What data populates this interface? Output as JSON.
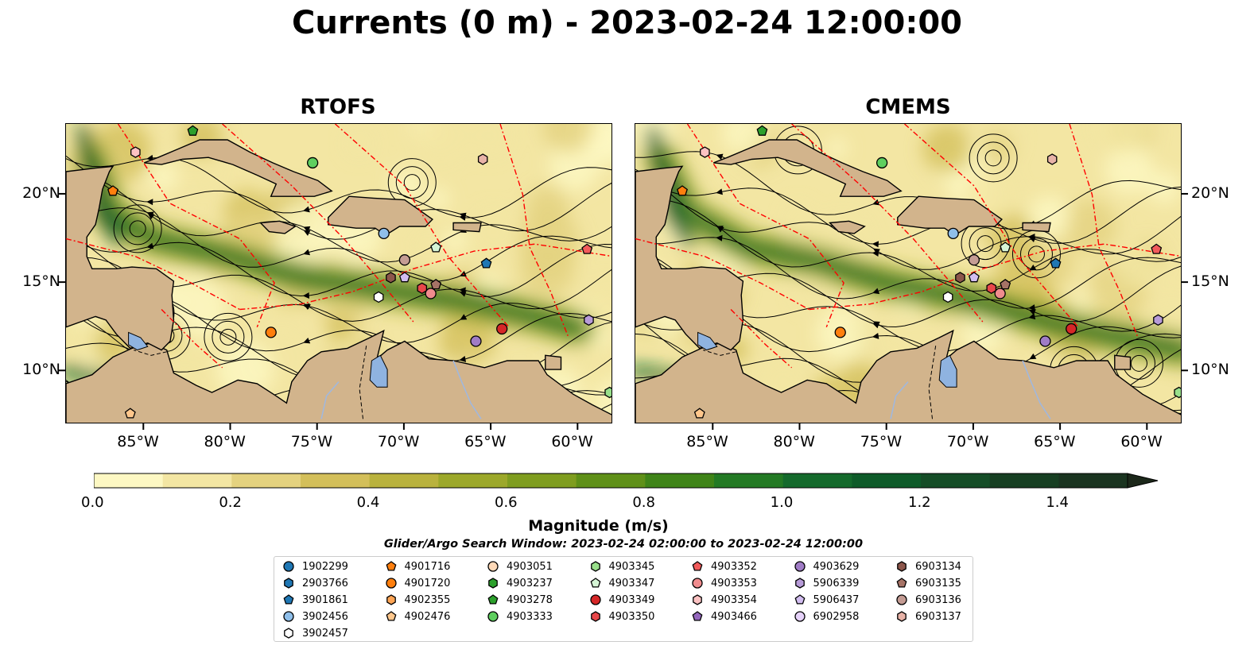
{
  "title": "Currents (0 m) - 2023-02-24 12:00:00",
  "panels": [
    {
      "title": "RTOFS"
    },
    {
      "title": "CMEMS"
    }
  ],
  "colors": {
    "land": "#d2b48c",
    "ocean_ramp": [
      "#fdf8c3",
      "#f3e6a3",
      "#e4d27f",
      "#d3bf5a",
      "#b9b23d",
      "#9ca82a",
      "#7f9d1f",
      "#5f9018",
      "#3f8418",
      "#237a24",
      "#146a2c",
      "#0e5b29",
      "#154d27",
      "#173f22",
      "#1a3420",
      "#1c281a"
    ],
    "eez_line": "#ff0000"
  },
  "chart_data": {
    "type": "heatmap",
    "variable": "surface current magnitude with streamlines",
    "x_axis": {
      "label": "",
      "range": [
        -89.5,
        -58
      ],
      "ticks": [
        -85,
        -80,
        -75,
        -70,
        -65,
        -60
      ],
      "tick_labels": [
        "85°W",
        "80°W",
        "75°W",
        "70°W",
        "65°W",
        "60°W"
      ]
    },
    "y_axis": {
      "label": "",
      "range": [
        7,
        24
      ],
      "ticks": [
        10,
        15,
        20
      ],
      "tick_labels": [
        "10°N",
        "15°N",
        "20°N"
      ]
    },
    "colorbar": {
      "label": "Magnitude (m/s)",
      "range": [
        0,
        1.5
      ],
      "step": 0.1,
      "extend": "max",
      "ticks": [
        0,
        0.2,
        0.4,
        0.6,
        0.8,
        1.0,
        1.2,
        1.4
      ],
      "tick_labels": [
        "0.0",
        "0.2",
        "0.4",
        "0.6",
        "0.8",
        "1.0",
        "1.2",
        "1.4"
      ]
    },
    "search_window": "Glider/Argo Search Window: 2023-02-24 02:00:00 to 2023-02-24 12:00:00",
    "floats": [
      {
        "id": "1902299",
        "marker": "circle",
        "color": "#1f77b4",
        "lon": null,
        "lat": null
      },
      {
        "id": "2903766",
        "marker": "hexagon",
        "color": "#1f77b4",
        "lon": null,
        "lat": null
      },
      {
        "id": "3901861",
        "marker": "pentagon",
        "color": "#1f77b4",
        "lon": -65.3,
        "lat": 16.1
      },
      {
        "id": "3902456",
        "marker": "circle",
        "color": "#8fbfea",
        "lon": -71.2,
        "lat": 17.8
      },
      {
        "id": "3902457",
        "marker": "hexagon",
        "color": "#ffffff",
        "lon": -71.5,
        "lat": 14.2
      },
      {
        "id": "4901716",
        "marker": "pentagon",
        "color": "#ff7f0e",
        "lon": -86.8,
        "lat": 20.2
      },
      {
        "id": "4901720",
        "marker": "circle",
        "color": "#ff7f0e",
        "lon": -77.7,
        "lat": 12.2
      },
      {
        "id": "4902355",
        "marker": "hexagon",
        "color": "#ffa555",
        "lon": null,
        "lat": null
      },
      {
        "id": "4902476",
        "marker": "pentagon",
        "color": "#ffc78c",
        "lon": -85.8,
        "lat": 7.6
      },
      {
        "id": "4903051",
        "marker": "circle",
        "color": "#ffd9b8",
        "lon": null,
        "lat": null
      },
      {
        "id": "4903237",
        "marker": "hexagon",
        "color": "#2ca02c",
        "lon": null,
        "lat": null
      },
      {
        "id": "4903278",
        "marker": "pentagon",
        "color": "#2ca02c",
        "lon": -82.2,
        "lat": 23.6
      },
      {
        "id": "4903333",
        "marker": "circle",
        "color": "#5fcf5f",
        "lon": -75.3,
        "lat": 21.8
      },
      {
        "id": "4903345",
        "marker": "hexagon",
        "color": "#98df8a",
        "lon": -58.2,
        "lat": 8.8
      },
      {
        "id": "4903347",
        "marker": "pentagon",
        "color": "#d6f5d6",
        "lon": -68.2,
        "lat": 17.0
      },
      {
        "id": "4903349",
        "marker": "circle",
        "color": "#d62728",
        "lon": -64.4,
        "lat": 12.4
      },
      {
        "id": "4903350",
        "marker": "hexagon",
        "color": "#e8474a",
        "lon": -69.0,
        "lat": 14.7
      },
      {
        "id": "4903352",
        "marker": "pentagon",
        "color": "#f25b5b",
        "lon": -59.5,
        "lat": 16.9
      },
      {
        "id": "4903353",
        "marker": "circle",
        "color": "#f08c8e",
        "lon": -68.5,
        "lat": 14.4
      },
      {
        "id": "4903354",
        "marker": "hexagon",
        "color": "#fcc2c2",
        "lon": -85.5,
        "lat": 22.4
      },
      {
        "id": "4903466",
        "marker": "pentagon",
        "color": "#9467bd",
        "lon": null,
        "lat": null
      },
      {
        "id": "4903629",
        "marker": "circle",
        "color": "#a07cc6",
        "lon": -65.9,
        "lat": 11.7
      },
      {
        "id": "5906339",
        "marker": "hexagon",
        "color": "#b79bd8",
        "lon": -59.4,
        "lat": 12.9
      },
      {
        "id": "5906437",
        "marker": "pentagon",
        "color": "#d2bdf0",
        "lon": -70.0,
        "lat": 15.3
      },
      {
        "id": "6902958",
        "marker": "circle",
        "color": "#e6d2fa",
        "lon": null,
        "lat": null
      },
      {
        "id": "6903134",
        "marker": "hexagon",
        "color": "#8c564b",
        "lon": -70.8,
        "lat": 15.3
      },
      {
        "id": "6903135",
        "marker": "pentagon",
        "color": "#a67366",
        "lon": -68.2,
        "lat": 14.9
      },
      {
        "id": "6903136",
        "marker": "circle",
        "color": "#c49c94",
        "lon": -70.0,
        "lat": 16.3
      },
      {
        "id": "6903137",
        "marker": "hexagon",
        "color": "#e8b3a8",
        "lon": -65.5,
        "lat": 22.0
      }
    ]
  }
}
